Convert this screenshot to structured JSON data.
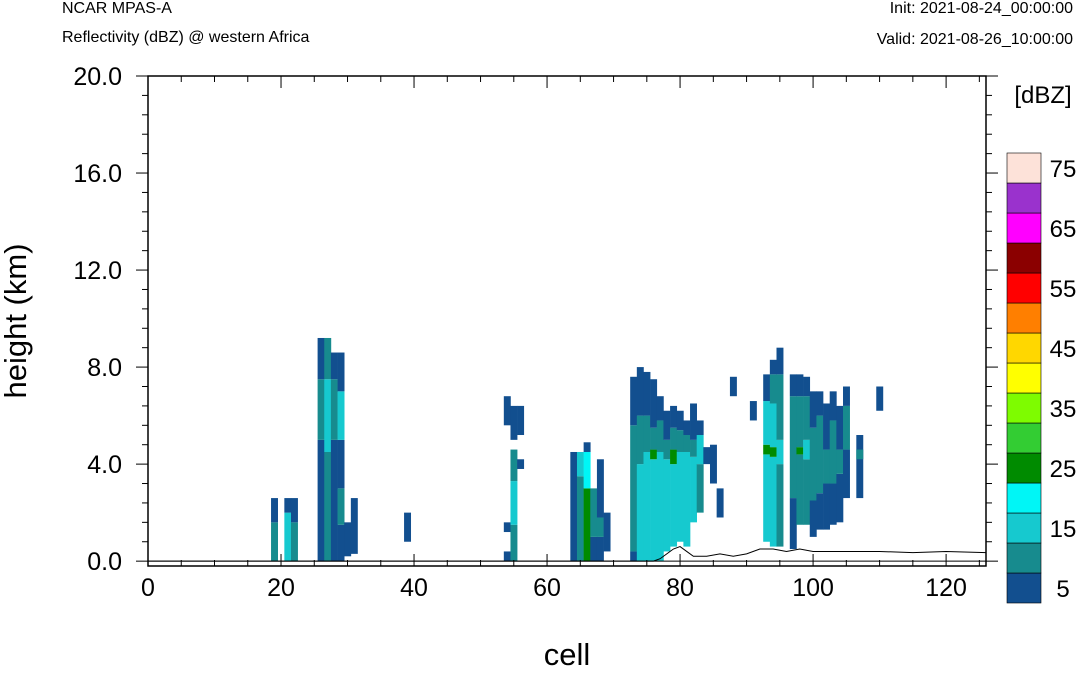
{
  "header": {
    "model": "NCAR MPAS-A",
    "field": "Reflectivity (dBZ) @ western Africa",
    "init": "Init: 2021-08-24_00:00:00",
    "valid": "Valid: 2021-08-26_10:00:00"
  },
  "chart_data": {
    "type": "heatmap",
    "xlabel": "cell",
    "ylabel": "height (km)",
    "xlim": [
      0,
      126
    ],
    "ylim": [
      -0.2,
      20
    ],
    "x_ticks": [
      "0",
      "20",
      "40",
      "60",
      "80",
      "100",
      "120"
    ],
    "y_ticks": [
      "0.0",
      "4.0",
      "8.0",
      "12.0",
      "16.0",
      "20.0"
    ],
    "colorbar": {
      "units": "[dBZ]",
      "levels": [
        5,
        10,
        15,
        20,
        25,
        30,
        35,
        40,
        45,
        50,
        55,
        60,
        65,
        70,
        75
      ],
      "labels": [
        "5",
        "15",
        "25",
        "35",
        "45",
        "55",
        "65",
        "75"
      ],
      "colors": [
        "#124f8f",
        "#178b8e",
        "#16c9cf",
        "#00f6f6",
        "#008b00",
        "#33cd33",
        "#7efc00",
        "#ffff00",
        "#ffd700",
        "#ff7f00",
        "#ff0000",
        "#8b0000",
        "#ff00ff",
        "#9a32cd",
        "#fde2d9"
      ]
    },
    "columns": [
      {
        "x": 19,
        "segs": [
          [
            0,
            1.6,
            1
          ],
          [
            1.6,
            2.6,
            0
          ]
        ]
      },
      {
        "x": 21,
        "segs": [
          [
            0,
            2.0,
            2
          ],
          [
            2.0,
            2.6,
            0
          ]
        ]
      },
      {
        "x": 22,
        "segs": [
          [
            0,
            1.6,
            1
          ],
          [
            1.6,
            2.6,
            0
          ]
        ]
      },
      {
        "x": 26,
        "segs": [
          [
            0,
            5.0,
            0
          ],
          [
            5.0,
            7.5,
            1
          ],
          [
            7.5,
            9.2,
            0
          ]
        ]
      },
      {
        "x": 27,
        "segs": [
          [
            0,
            4.5,
            1
          ],
          [
            4.5,
            7.5,
            2
          ],
          [
            7.5,
            9.2,
            1
          ]
        ]
      },
      {
        "x": 28,
        "segs": [
          [
            0,
            5.0,
            0
          ],
          [
            5.0,
            7.5,
            1
          ],
          [
            7.5,
            8.6,
            0
          ]
        ]
      },
      {
        "x": 29,
        "segs": [
          [
            0,
            1.5,
            0
          ],
          [
            1.5,
            3.0,
            1
          ],
          [
            3.0,
            5.0,
            0
          ],
          [
            5.0,
            7.0,
            2
          ],
          [
            7.0,
            8.6,
            0
          ]
        ]
      },
      {
        "x": 30,
        "segs": [
          [
            0.2,
            1.6,
            0
          ]
        ]
      },
      {
        "x": 31,
        "segs": [
          [
            0.3,
            2.6,
            0
          ]
        ]
      },
      {
        "x": 39,
        "segs": [
          [
            0.8,
            2.0,
            0
          ]
        ]
      },
      {
        "x": 54,
        "segs": [
          [
            0,
            0.4,
            0
          ],
          [
            1.2,
            1.6,
            0
          ],
          [
            5.6,
            6.8,
            0
          ]
        ]
      },
      {
        "x": 55,
        "segs": [
          [
            0,
            1.5,
            1
          ],
          [
            1.5,
            3.3,
            2
          ],
          [
            3.3,
            4.6,
            1
          ],
          [
            5.0,
            6.4,
            0
          ]
        ]
      },
      {
        "x": 56,
        "segs": [
          [
            3.8,
            4.2,
            0
          ],
          [
            5.2,
            6.4,
            0
          ]
        ]
      },
      {
        "x": 64,
        "segs": [
          [
            0,
            4.5,
            0
          ]
        ]
      },
      {
        "x": 65,
        "segs": [
          [
            0,
            3.5,
            1
          ],
          [
            3.5,
            4.5,
            2
          ]
        ]
      },
      {
        "x": 66,
        "segs": [
          [
            0,
            3.0,
            4
          ],
          [
            3.0,
            4.5,
            3
          ],
          [
            4.5,
            4.9,
            0
          ]
        ]
      },
      {
        "x": 67,
        "segs": [
          [
            0,
            1.0,
            0
          ],
          [
            1.0,
            3.0,
            1
          ]
        ]
      },
      {
        "x": 68,
        "segs": [
          [
            0,
            1.0,
            0
          ],
          [
            1.0,
            1.8,
            1
          ],
          [
            1.8,
            4.2,
            0
          ]
        ]
      },
      {
        "x": 69,
        "segs": [
          [
            0.4,
            2.0,
            0
          ]
        ]
      },
      {
        "x": 73,
        "segs": [
          [
            0,
            0.4,
            0
          ],
          [
            0.4,
            5.6,
            1
          ],
          [
            5.6,
            7.6,
            0
          ]
        ]
      },
      {
        "x": 74,
        "segs": [
          [
            0,
            4.0,
            2
          ],
          [
            4.0,
            6.0,
            1
          ],
          [
            6.0,
            8.0,
            0
          ]
        ]
      },
      {
        "x": 75,
        "segs": [
          [
            0,
            4.5,
            2
          ],
          [
            4.5,
            6.0,
            1
          ],
          [
            6.0,
            7.8,
            0
          ]
        ]
      },
      {
        "x": 76,
        "segs": [
          [
            0,
            4.2,
            2
          ],
          [
            4.2,
            4.6,
            4
          ],
          [
            4.6,
            5.5,
            1
          ],
          [
            5.5,
            7.5,
            0
          ]
        ]
      },
      {
        "x": 77,
        "segs": [
          [
            0,
            4.5,
            2
          ],
          [
            4.5,
            5.8,
            1
          ],
          [
            5.8,
            6.8,
            0
          ]
        ]
      },
      {
        "x": 78,
        "segs": [
          [
            0.4,
            4.2,
            2
          ],
          [
            4.2,
            5.0,
            1
          ],
          [
            5.0,
            6.2,
            0
          ]
        ]
      },
      {
        "x": 79,
        "segs": [
          [
            0.6,
            4.0,
            2
          ],
          [
            4.0,
            4.6,
            4
          ],
          [
            4.6,
            5.5,
            1
          ],
          [
            5.5,
            6.4,
            0
          ]
        ]
      },
      {
        "x": 80,
        "segs": [
          [
            0.8,
            4.5,
            2
          ],
          [
            4.5,
            5.4,
            1
          ],
          [
            5.4,
            6.2,
            0
          ]
        ]
      },
      {
        "x": 81,
        "segs": [
          [
            0.6,
            4.5,
            2
          ],
          [
            4.5,
            5.2,
            1
          ],
          [
            5.2,
            5.8,
            0
          ]
        ]
      },
      {
        "x": 82,
        "segs": [
          [
            1.6,
            4.3,
            2
          ],
          [
            4.3,
            5.0,
            1
          ],
          [
            5.0,
            6.5,
            0
          ]
        ]
      },
      {
        "x": 83,
        "segs": [
          [
            2.0,
            4.0,
            1
          ],
          [
            4.0,
            5.2,
            2
          ],
          [
            5.2,
            5.8,
            0
          ]
        ]
      },
      {
        "x": 84,
        "segs": [
          [
            4.0,
            4.7,
            0
          ]
        ]
      },
      {
        "x": 85,
        "segs": [
          [
            3.2,
            4.8,
            0
          ]
        ]
      },
      {
        "x": 86,
        "segs": [
          [
            1.8,
            3.0,
            0
          ]
        ]
      },
      {
        "x": 88,
        "segs": [
          [
            6.8,
            7.6,
            0
          ]
        ]
      },
      {
        "x": 91,
        "segs": [
          [
            5.8,
            6.6,
            0
          ]
        ]
      },
      {
        "x": 93,
        "segs": [
          [
            0.8,
            4.4,
            2
          ],
          [
            4.4,
            4.8,
            4
          ],
          [
            4.8,
            6.6,
            2
          ],
          [
            6.6,
            7.7,
            0
          ]
        ]
      },
      {
        "x": 94,
        "segs": [
          [
            0.6,
            4.3,
            2
          ],
          [
            4.3,
            4.7,
            4
          ],
          [
            4.7,
            6.5,
            2
          ],
          [
            6.5,
            7.7,
            1
          ],
          [
            7.7,
            8.3,
            0
          ]
        ]
      },
      {
        "x": 95,
        "segs": [
          [
            0.6,
            4.0,
            1
          ],
          [
            4.0,
            5.0,
            2
          ],
          [
            5.0,
            7.7,
            1
          ],
          [
            7.7,
            8.8,
            0
          ]
        ]
      },
      {
        "x": 97,
        "segs": [
          [
            0.5,
            2.6,
            0
          ],
          [
            2.6,
            6.8,
            1
          ],
          [
            6.8,
            7.7,
            0
          ]
        ]
      },
      {
        "x": 98,
        "segs": [
          [
            1.5,
            4.4,
            1
          ],
          [
            4.4,
            4.7,
            4
          ],
          [
            4.7,
            6.8,
            1
          ],
          [
            6.8,
            7.7,
            0
          ]
        ]
      },
      {
        "x": 99,
        "segs": [
          [
            1.5,
            4.2,
            1
          ],
          [
            4.2,
            5.0,
            2
          ],
          [
            5.0,
            6.8,
            1
          ],
          [
            6.8,
            7.6,
            0
          ]
        ]
      },
      {
        "x": 100,
        "segs": [
          [
            1.0,
            2.5,
            0
          ],
          [
            2.5,
            5.5,
            1
          ],
          [
            5.5,
            7.0,
            0
          ]
        ]
      },
      {
        "x": 101,
        "segs": [
          [
            1.3,
            2.8,
            0
          ],
          [
            2.8,
            6.0,
            1
          ],
          [
            6.0,
            7.0,
            0
          ]
        ]
      },
      {
        "x": 102,
        "segs": [
          [
            1.3,
            3.2,
            0
          ],
          [
            3.2,
            4.6,
            1
          ],
          [
            4.6,
            6.5,
            0
          ]
        ]
      },
      {
        "x": 103,
        "segs": [
          [
            1.5,
            3.2,
            0
          ],
          [
            3.2,
            5.8,
            1
          ],
          [
            5.8,
            7.0,
            0
          ]
        ]
      },
      {
        "x": 104,
        "segs": [
          [
            1.6,
            3.6,
            0
          ],
          [
            3.6,
            4.6,
            1
          ],
          [
            4.6,
            6.4,
            0
          ]
        ]
      },
      {
        "x": 105,
        "segs": [
          [
            2.6,
            4.6,
            0
          ],
          [
            4.6,
            6.4,
            1
          ],
          [
            6.4,
            7.2,
            0
          ]
        ]
      },
      {
        "x": 107,
        "segs": [
          [
            2.6,
            5.2,
            0
          ],
          [
            4.2,
            4.6,
            1
          ]
        ]
      },
      {
        "x": 110,
        "segs": [
          [
            6.2,
            7.2,
            0
          ]
        ]
      }
    ],
    "terrain": [
      [
        0,
        0
      ],
      [
        76,
        0
      ],
      [
        77,
        0.1
      ],
      [
        78,
        0.3
      ],
      [
        79,
        0.5
      ],
      [
        80,
        0.6
      ],
      [
        81,
        0.4
      ],
      [
        82,
        0.2
      ],
      [
        84,
        0.2
      ],
      [
        86,
        0.3
      ],
      [
        88,
        0.2
      ],
      [
        90,
        0.3
      ],
      [
        92,
        0.5
      ],
      [
        94,
        0.5
      ],
      [
        96,
        0.4
      ],
      [
        98,
        0.5
      ],
      [
        100,
        0.4
      ],
      [
        105,
        0.4
      ],
      [
        110,
        0.4
      ],
      [
        115,
        0.35
      ],
      [
        120,
        0.4
      ],
      [
        126,
        0.35
      ]
    ]
  }
}
